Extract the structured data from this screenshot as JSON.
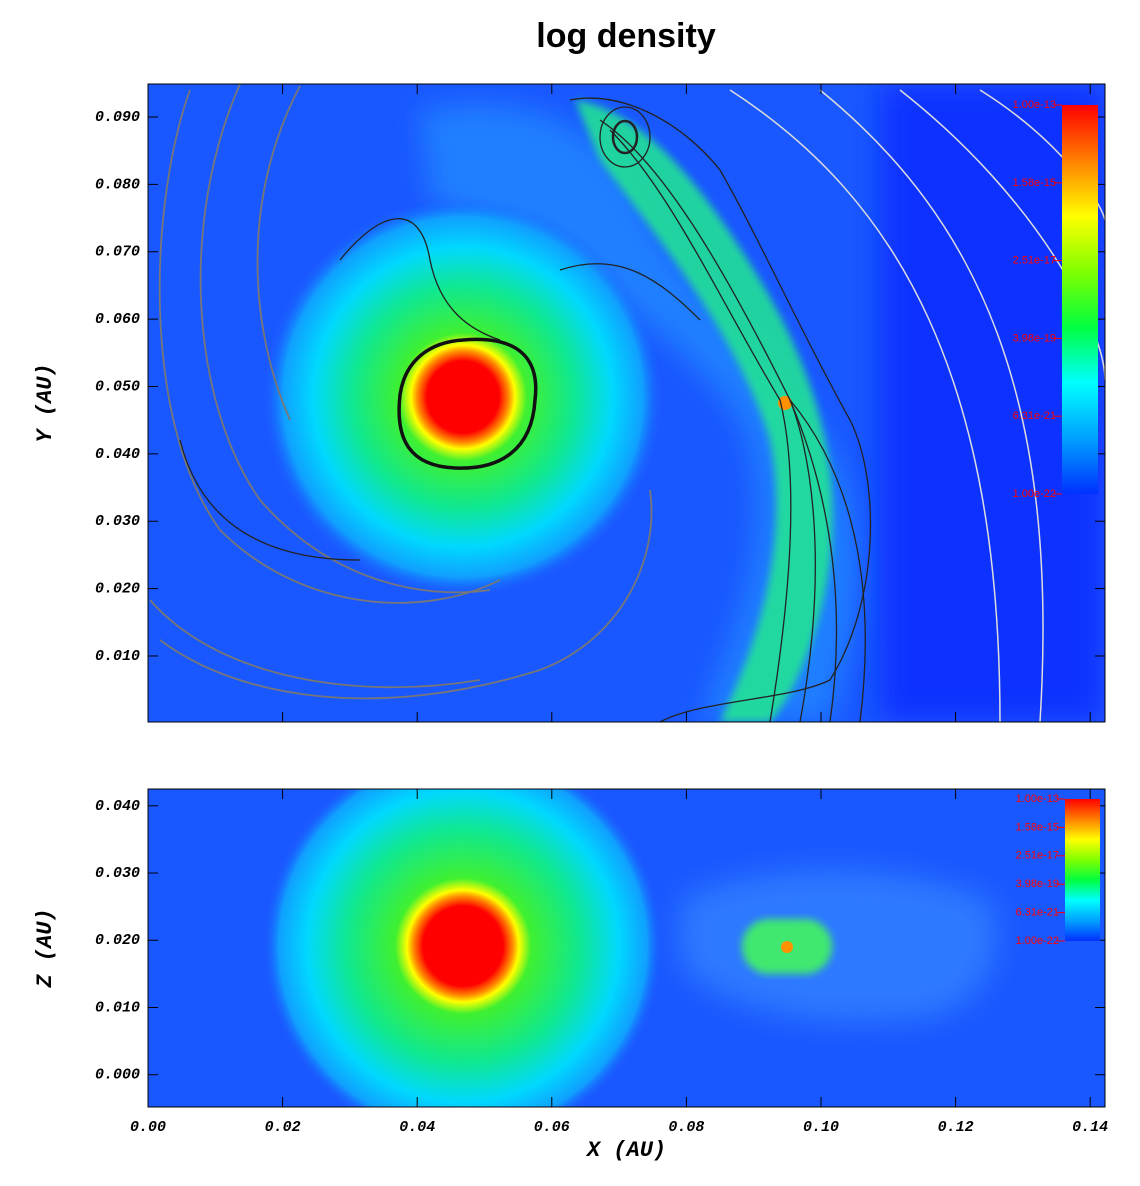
{
  "chart_data": [
    {
      "type": "heatmap",
      "title": "log density",
      "ylabel": "Y (AU)",
      "xlim": [
        0,
        0.1422
      ],
      "ylim": [
        0.0002,
        0.0949
      ],
      "xticks": [
        0,
        0.02,
        0.04,
        0.06,
        0.08,
        0.1,
        0.12,
        0.14
      ],
      "yticks": [
        {
          "value": 0.01,
          "label": "0.010"
        },
        {
          "value": 0.02,
          "label": "0.020"
        },
        {
          "value": 0.03,
          "label": "0.030"
        },
        {
          "value": 0.04,
          "label": "0.040"
        },
        {
          "value": 0.05,
          "label": "0.050"
        },
        {
          "value": 0.06,
          "label": "0.060"
        },
        {
          "value": 0.07,
          "label": "0.070"
        },
        {
          "value": 0.08,
          "label": "0.080"
        },
        {
          "value": 0.09,
          "label": "0.090"
        }
      ],
      "colorbar": {
        "log": true,
        "clim": [
          1e-22,
          1e-13
        ],
        "colors": [
          "#0030ff",
          "#00a0ff",
          "#00ffff",
          "#00ff40",
          "#80ff00",
          "#ffff00",
          "#ff8000",
          "#ff0000"
        ],
        "ticks": [
          {
            "value": 1e-13,
            "label": "1.00e-13"
          },
          {
            "value": 1.58e-15,
            "label": "1.58e-15"
          },
          {
            "value": 2.51e-17,
            "label": "2.51e-17"
          },
          {
            "value": 3.98e-19,
            "label": "3.98e-19"
          },
          {
            "value": 6.31e-21,
            "label": "6.31e-21"
          },
          {
            "value": 1e-22,
            "label": "1.00e-22"
          }
        ]
      }
    },
    {
      "type": "heatmap",
      "ylabel": "Z (AU)",
      "xlabel": "X (AU)",
      "xlim": [
        0,
        0.1422
      ],
      "ylim": [
        -0.0048,
        0.0425
      ],
      "xticks": [
        {
          "value": 0,
          "label": "0.00"
        },
        {
          "value": 0.02,
          "label": "0.02"
        },
        {
          "value": 0.04,
          "label": "0.04"
        },
        {
          "value": 0.06,
          "label": "0.06"
        },
        {
          "value": 0.08,
          "label": "0.08"
        },
        {
          "value": 0.1,
          "label": "0.10"
        },
        {
          "value": 0.12,
          "label": "0.12"
        },
        {
          "value": 0.14,
          "label": "0.14"
        }
      ],
      "yticks": [
        {
          "value": 0,
          "label": "0.000"
        },
        {
          "value": 0.01,
          "label": "0.010"
        },
        {
          "value": 0.02,
          "label": "0.020"
        },
        {
          "value": 0.03,
          "label": "0.030"
        },
        {
          "value": 0.04,
          "label": "0.040"
        }
      ],
      "colorbar": {
        "log": true,
        "clim": [
          1e-22,
          1e-13
        ],
        "colors": [
          "#0030ff",
          "#00a0ff",
          "#00ffff",
          "#00ff40",
          "#80ff00",
          "#ffff00",
          "#ff8000",
          "#ff0000"
        ],
        "ticks": [
          {
            "value": 1e-13,
            "label": "1.00e-13"
          },
          {
            "value": 1.58e-15,
            "label": "1.58e-15"
          },
          {
            "value": 2.51e-17,
            "label": "2.51e-17"
          },
          {
            "value": 3.98e-19,
            "label": "3.98e-19"
          },
          {
            "value": 6.31e-21,
            "label": "6.31e-21"
          },
          {
            "value": 1e-22,
            "label": "1.00e-22"
          }
        ]
      }
    }
  ]
}
